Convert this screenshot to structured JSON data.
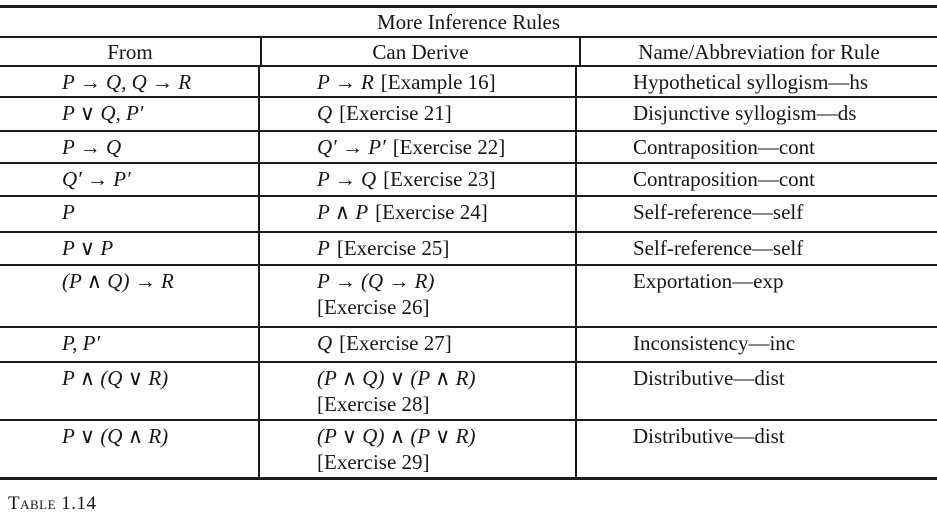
{
  "page": {
    "background": "#ffffff",
    "text_color": "#161616",
    "rule_color": "#1c1c1c"
  },
  "table": {
    "title": "More Inference Rules",
    "columns": [
      "From",
      "Can Derive",
      "Name/Abbreviation for Rule"
    ],
    "rows": [
      {
        "from": "P → Q, Q → R",
        "derive": "P → R",
        "note": "[Example 16]",
        "name": "Hypothetical syllogism—hs"
      },
      {
        "from": "P ∨ Q, P′",
        "derive": "Q",
        "note": "[Exercise 21]",
        "name": "Disjunctive syllogism—ds"
      },
      {
        "from": "P → Q",
        "derive": "Q′ → P′",
        "note": "[Exercise 22]",
        "name": "Contraposition—cont"
      },
      {
        "from": "Q′ → P′",
        "derive": "P → Q",
        "note": "[Exercise 23]",
        "name": "Contraposition—cont"
      },
      {
        "from": "P",
        "derive": "P ∧ P",
        "note": "[Exercise 24]",
        "name": "Self-reference—self"
      },
      {
        "from": "P ∨ P",
        "derive": "P",
        "note": "[Exercise 25]",
        "name": "Self-reference—self"
      },
      {
        "from": "(P ∧ Q) → R",
        "derive": "P → (Q → R)",
        "note": "[Exercise 26]",
        "name": "Exportation—exp"
      },
      {
        "from": "P, P′",
        "derive": "Q",
        "note": "[Exercise 27]",
        "name": "Inconsistency—inc"
      },
      {
        "from": "P ∧ (Q ∨ R)",
        "derive": "(P ∧ Q) ∨ (P ∧ R)",
        "note": "[Exercise 28]",
        "name": "Distributive—dist"
      },
      {
        "from": "P ∨ (Q ∧ R)",
        "derive": "(P ∨ Q) ∧ (P ∨ R)",
        "note": "[Exercise 29]",
        "name": "Distributive—dist"
      }
    ],
    "caption": "Table 1.14"
  }
}
